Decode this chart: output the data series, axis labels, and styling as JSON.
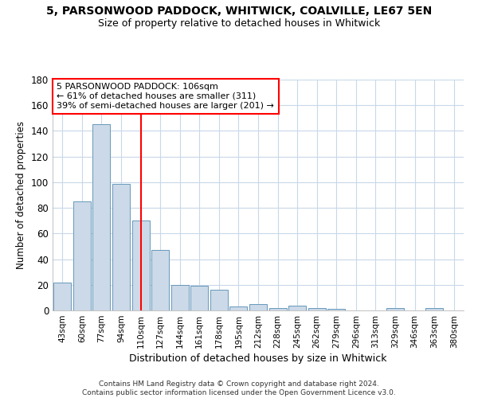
{
  "title": "5, PARSONWOOD PADDOCK, WHITWICK, COALVILLE, LE67 5EN",
  "subtitle": "Size of property relative to detached houses in Whitwick",
  "xlabel": "Distribution of detached houses by size in Whitwick",
  "ylabel": "Number of detached properties",
  "bar_labels": [
    "43sqm",
    "60sqm",
    "77sqm",
    "94sqm",
    "110sqm",
    "127sqm",
    "144sqm",
    "161sqm",
    "178sqm",
    "195sqm",
    "212sqm",
    "228sqm",
    "245sqm",
    "262sqm",
    "279sqm",
    "296sqm",
    "313sqm",
    "329sqm",
    "346sqm",
    "363sqm",
    "380sqm"
  ],
  "bar_values": [
    22,
    85,
    145,
    99,
    70,
    47,
    20,
    19,
    16,
    3,
    5,
    2,
    4,
    2,
    1,
    0,
    0,
    2,
    0,
    2,
    0
  ],
  "bar_color": "#ccd9e8",
  "bar_edge_color": "#6699bb",
  "grid_color": "#c8d8e8",
  "background_color": "#ffffff",
  "vline_x": 4.0,
  "vline_color": "red",
  "annotation_text": "5 PARSONWOOD PADDOCK: 106sqm\n← 61% of detached houses are smaller (311)\n39% of semi-detached houses are larger (201) →",
  "annotation_box_color": "white",
  "annotation_box_edge": "red",
  "ylim": [
    0,
    180
  ],
  "yticks": [
    0,
    20,
    40,
    60,
    80,
    100,
    120,
    140,
    160,
    180
  ],
  "footer": "Contains HM Land Registry data © Crown copyright and database right 2024.\nContains public sector information licensed under the Open Government Licence v3.0."
}
